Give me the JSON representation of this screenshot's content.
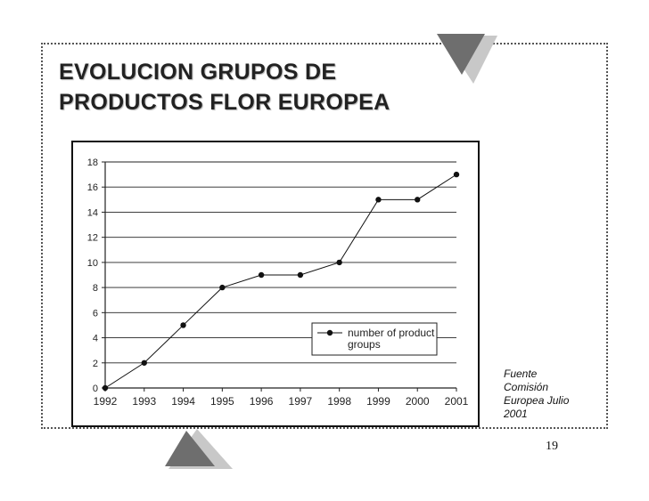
{
  "slide": {
    "title_lines": [
      "EVOLUCION GRUPOS DE",
      "PRODUCTOS FLOR EUROPEA"
    ],
    "source_lines": [
      "Fuente",
      "Comisión",
      "Europea Julio",
      "2001"
    ],
    "page_number": "19"
  },
  "chart_data": {
    "type": "line",
    "title": "",
    "xlabel": "",
    "ylabel": "",
    "categories": [
      "1992",
      "1993",
      "1994",
      "1995",
      "1996",
      "1997",
      "1998",
      "1999",
      "2000",
      "2001"
    ],
    "series": [
      {
        "name": "number of product groups",
        "values": [
          0,
          2,
          5,
          8,
          9,
          9,
          10,
          15,
          15,
          17
        ]
      }
    ],
    "ylim": [
      0,
      18
    ],
    "yticks": [
      0,
      2,
      4,
      6,
      8,
      10,
      12,
      14,
      16,
      18
    ],
    "grid": true,
    "legend": {
      "placement": "bottom-right inside plot",
      "lines": [
        "number of product",
        "groups"
      ]
    }
  }
}
